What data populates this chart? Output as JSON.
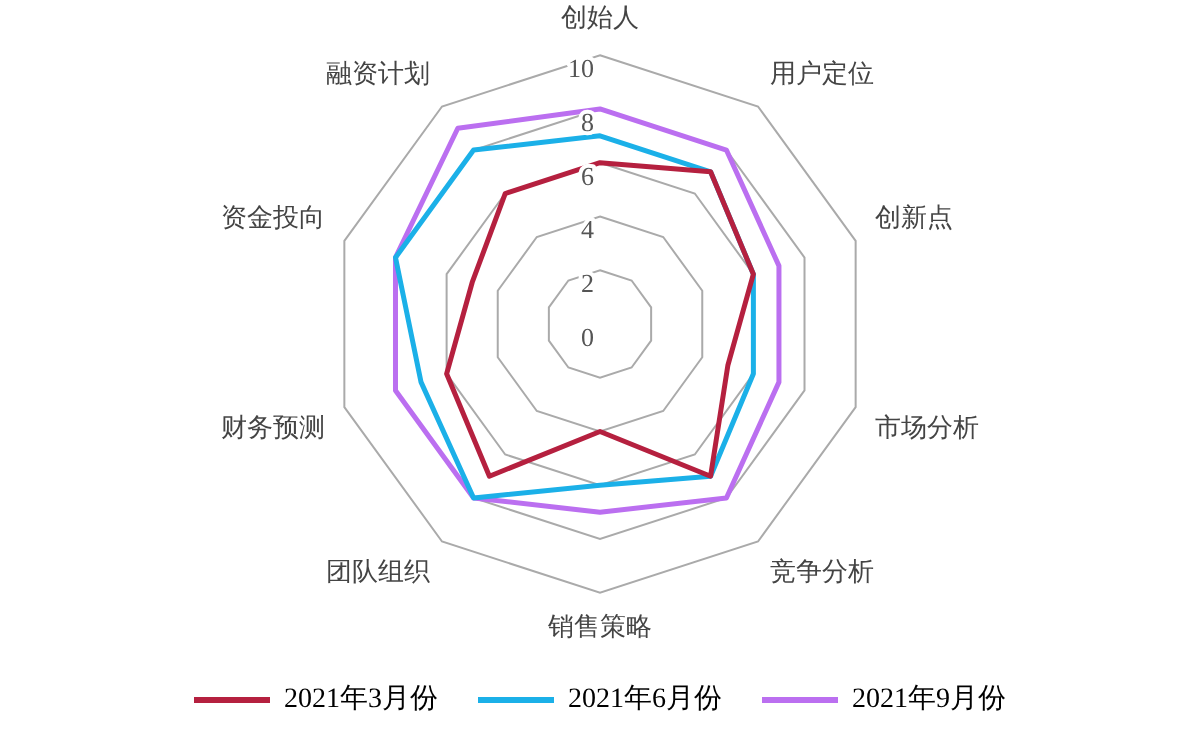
{
  "chart_data": {
    "type": "radar",
    "categories": [
      "创始人",
      "用户定位",
      "创新点",
      "市场分析",
      "竞争分析",
      "销售策略",
      "团队组织",
      "财务预测",
      "资金投向",
      "融资计划"
    ],
    "series": [
      {
        "name": "2021年3月份",
        "color": "#b5203f",
        "values": [
          6,
          7,
          6,
          5,
          7,
          4,
          7,
          6,
          5,
          6
        ]
      },
      {
        "name": "2021年6月份",
        "color": "#1bb0e8",
        "values": [
          7,
          7,
          6,
          6,
          7,
          6,
          8,
          7,
          8,
          8
        ]
      },
      {
        "name": "2021年9月份",
        "color": "#bb6ff0",
        "values": [
          8,
          8,
          7,
          7,
          8,
          7,
          8,
          8,
          8,
          9
        ]
      }
    ],
    "ylim": [
      0,
      10
    ],
    "yticks": [
      0,
      2,
      4,
      6,
      8,
      10
    ],
    "grid": true,
    "legend": "bottom",
    "marker": "none"
  }
}
